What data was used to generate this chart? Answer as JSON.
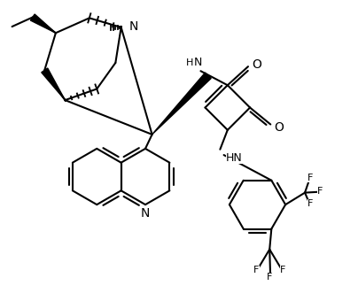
{
  "bg_color": "#ffffff",
  "line_color": "#000000",
  "lw": 1.5,
  "bold_lw": 5.0,
  "fs": 9,
  "figsize": [
    4.04,
    3.4
  ],
  "dpi": 100,
  "xlim": [
    0,
    9.5
  ],
  "ylim": [
    0,
    8.0
  ]
}
